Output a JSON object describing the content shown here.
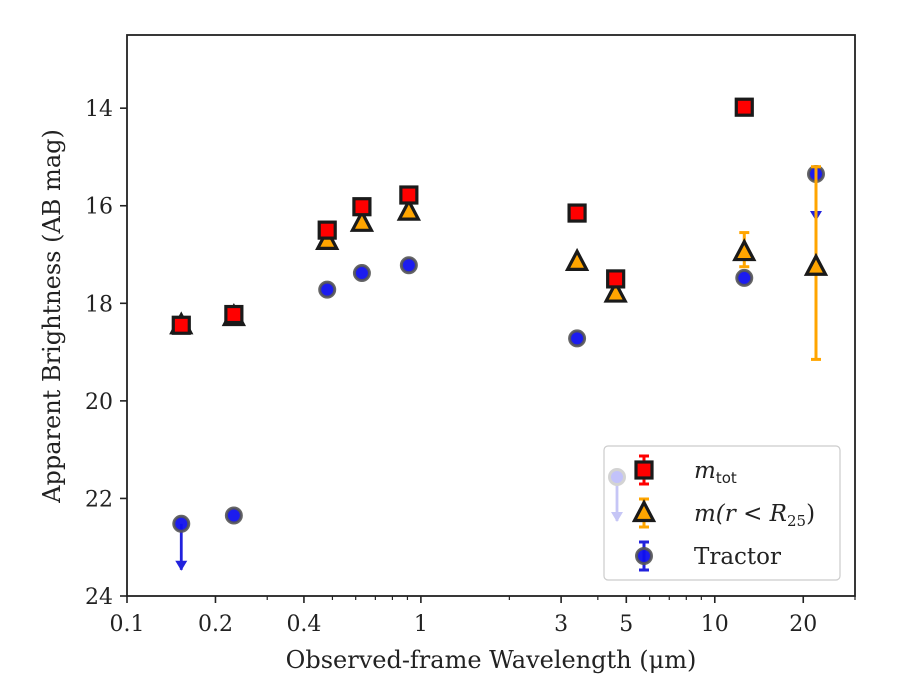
{
  "chart_data": {
    "type": "scatter",
    "title": "",
    "xlabel": "Observed-frame Wavelength (μm)",
    "ylabel": "Apparent Brightness (AB mag)",
    "x_scale": "log",
    "y_inverted": true,
    "xlim": [
      0.1,
      30
    ],
    "ylim": [
      24,
      12.5
    ],
    "x_major_ticks": [
      0.1,
      0.2,
      0.4,
      1,
      3,
      5,
      10,
      20
    ],
    "x_tick_labels": [
      "0.1",
      "0.2",
      "0.4",
      "1",
      "3",
      "5",
      "10",
      "20"
    ],
    "x_minor_ticks": [
      0.3,
      0.5,
      0.6,
      0.7,
      0.8,
      0.9,
      2,
      4,
      6,
      7,
      8,
      9,
      30
    ],
    "y_ticks": [
      14,
      16,
      18,
      20,
      22,
      24
    ],
    "y_tick_labels": [
      "14",
      "16",
      "18",
      "20",
      "22",
      "24"
    ],
    "legend_position": "lower right",
    "series": [
      {
        "label": "m_tot",
        "legend_base": "m",
        "legend_sub": "tot",
        "marker": "square",
        "color": "#ff0000",
        "edge": "#1a1a1a",
        "errcolor": "#ff0000",
        "points": [
          {
            "x": 0.153,
            "y": 18.45
          },
          {
            "x": 0.231,
            "y": 18.23
          },
          {
            "x": 0.48,
            "y": 16.5
          },
          {
            "x": 0.63,
            "y": 16.02
          },
          {
            "x": 0.91,
            "y": 15.78
          },
          {
            "x": 3.4,
            "y": 16.15
          },
          {
            "x": 4.6,
            "y": 17.5
          },
          {
            "x": 12.6,
            "y": 13.98
          }
        ]
      },
      {
        "label": "m(r<R25)",
        "legend_text": "m(r < R",
        "legend_sub": "25",
        "legend_close": ")",
        "marker": "triangle",
        "color": "#ffa500",
        "edge": "#1a1a1a",
        "errcolor": "#ffa500",
        "points": [
          {
            "x": 0.153,
            "y": 18.45
          },
          {
            "x": 0.231,
            "y": 18.28
          },
          {
            "x": 0.48,
            "y": 16.72
          },
          {
            "x": 0.63,
            "y": 16.35
          },
          {
            "x": 0.91,
            "y": 16.12
          },
          {
            "x": 3.4,
            "y": 17.15
          },
          {
            "x": 4.6,
            "y": 17.8
          },
          {
            "x": 12.6,
            "y": 16.95,
            "err_lo": 0.3,
            "err_hi": 0.4
          },
          {
            "x": 22.1,
            "y": 17.25,
            "err_lo": 1.9,
            "err_hi": 2.05
          }
        ]
      },
      {
        "label": "Tractor",
        "marker": "circle",
        "color": "#1010ee",
        "edge": "#555555",
        "errcolor": "#2222dd",
        "points": [
          {
            "x": 0.153,
            "y": 22.52,
            "upper_limit": true
          },
          {
            "x": 0.231,
            "y": 22.35
          },
          {
            "x": 0.48,
            "y": 17.72
          },
          {
            "x": 0.63,
            "y": 17.38
          },
          {
            "x": 0.91,
            "y": 17.22
          },
          {
            "x": 3.4,
            "y": 18.72
          },
          {
            "x": 12.6,
            "y": 17.48
          },
          {
            "x": 22.1,
            "y": 15.35,
            "upper_limit": true
          }
        ]
      }
    ]
  }
}
